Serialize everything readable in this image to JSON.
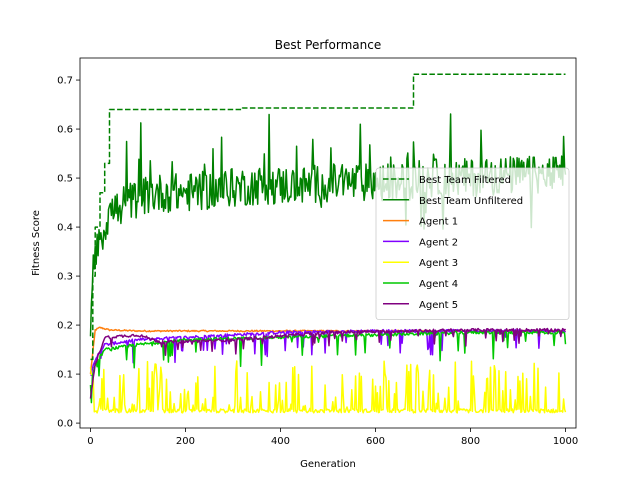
{
  "chart_data": {
    "type": "line",
    "title": "Best Performance",
    "xlabel": "Generation",
    "ylabel": "Fitness Score",
    "xlim": [
      -22,
      1022
    ],
    "ylim": [
      -0.01,
      0.745
    ],
    "xticks": [
      0,
      200,
      400,
      600,
      800,
      1000
    ],
    "yticks": [
      0.0,
      0.1,
      0.2,
      0.3,
      0.4,
      0.5,
      0.6,
      0.7
    ],
    "ytick_labels": [
      "0.0",
      "0.1",
      "0.2",
      "0.3",
      "0.4",
      "0.5",
      "0.6",
      "0.7"
    ],
    "grid": false,
    "legend_position": "center-right",
    "series": [
      {
        "name": "Best Team Filtered",
        "color": "#008000",
        "dash": true,
        "style": "step",
        "x": [
          0,
          5,
          10,
          20,
          30,
          40,
          310,
          320,
          680,
          1000
        ],
        "y": [
          0.13,
          0.3,
          0.4,
          0.47,
          0.53,
          0.64,
          0.64,
          0.643,
          0.712,
          0.712
        ]
      },
      {
        "name": "Best Team Unfiltered",
        "color": "#008000",
        "dash": false,
        "style": "noisy",
        "x": [
          0,
          5,
          10,
          20,
          30,
          40,
          60,
          80,
          100,
          120,
          150,
          180,
          200,
          250,
          300,
          350,
          400,
          450,
          500,
          550,
          600,
          650,
          700,
          750,
          800,
          850,
          900,
          950,
          1000
        ],
        "y": [
          0.14,
          0.33,
          0.36,
          0.38,
          0.4,
          0.43,
          0.44,
          0.45,
          0.46,
          0.465,
          0.47,
          0.47,
          0.47,
          0.475,
          0.48,
          0.485,
          0.485,
          0.485,
          0.49,
          0.49,
          0.49,
          0.49,
          0.5,
          0.5,
          0.5,
          0.505,
          0.505,
          0.505,
          0.51
        ],
        "noise_amp": 0.04,
        "noise_max": 0.12,
        "noise_min": 0.1
      },
      {
        "name": "Agent 1",
        "color": "#ff7f0e",
        "dash": false,
        "style": "flat",
        "x": [
          0,
          10,
          20,
          40,
          100,
          300,
          600,
          1000
        ],
        "y": [
          0.1,
          0.19,
          0.195,
          0.19,
          0.188,
          0.188,
          0.188,
          0.188
        ]
      },
      {
        "name": "Agent 2",
        "color": "#8000ff",
        "dash": false,
        "style": "dips",
        "x": [
          0,
          10,
          30,
          100,
          200,
          400,
          600,
          800,
          1000
        ],
        "y": [
          0.1,
          0.13,
          0.16,
          0.17,
          0.175,
          0.185,
          0.188,
          0.188,
          0.188
        ],
        "noise_min": 0.05
      },
      {
        "name": "Agent 3",
        "color": "#ffff00",
        "dash": false,
        "style": "spikes",
        "x": [
          0,
          1000
        ],
        "y": [
          0.025,
          0.025
        ],
        "noise_max": 0.1
      },
      {
        "name": "Agent 4",
        "color": "#00c800",
        "dash": false,
        "style": "dips",
        "x": [
          0,
          10,
          30,
          100,
          200,
          400,
          600,
          800,
          1000
        ],
        "y": [
          0.08,
          0.12,
          0.15,
          0.16,
          0.17,
          0.175,
          0.18,
          0.185,
          0.185
        ],
        "noise_min": 0.06
      },
      {
        "name": "Agent 5",
        "color": "#800080",
        "dash": false,
        "style": "dips",
        "x": [
          0,
          10,
          30,
          100,
          150,
          300,
          500,
          800,
          1000
        ],
        "y": [
          0.05,
          0.12,
          0.175,
          0.18,
          0.165,
          0.17,
          0.185,
          0.19,
          0.19
        ],
        "noise_min": 0.03
      }
    ]
  }
}
